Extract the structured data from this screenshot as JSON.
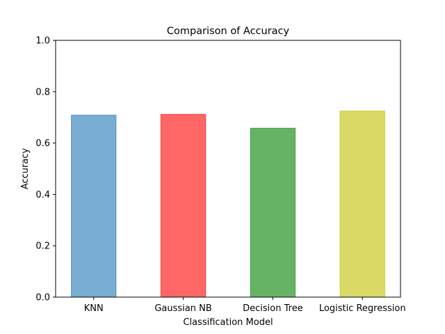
{
  "chart_data": {
    "type": "bar",
    "title": "Comparison of Accuracy",
    "xlabel": "Classification Model",
    "ylabel": "Accuracy",
    "ylim": [
      0,
      1.0
    ],
    "yticks": [
      "0.0",
      "0.2",
      "0.4",
      "0.6",
      "0.8",
      "1.0"
    ],
    "categories": [
      "KNN",
      "Gaussian NB",
      "Decision Tree",
      "Logistic Regression"
    ],
    "values": [
      0.709,
      0.712,
      0.658,
      0.725
    ],
    "colors": [
      "#1f77b4",
      "#ff0000",
      "#008000",
      "#bfbf00"
    ],
    "bar_alpha": 0.6,
    "grid": false,
    "legend": "none"
  }
}
